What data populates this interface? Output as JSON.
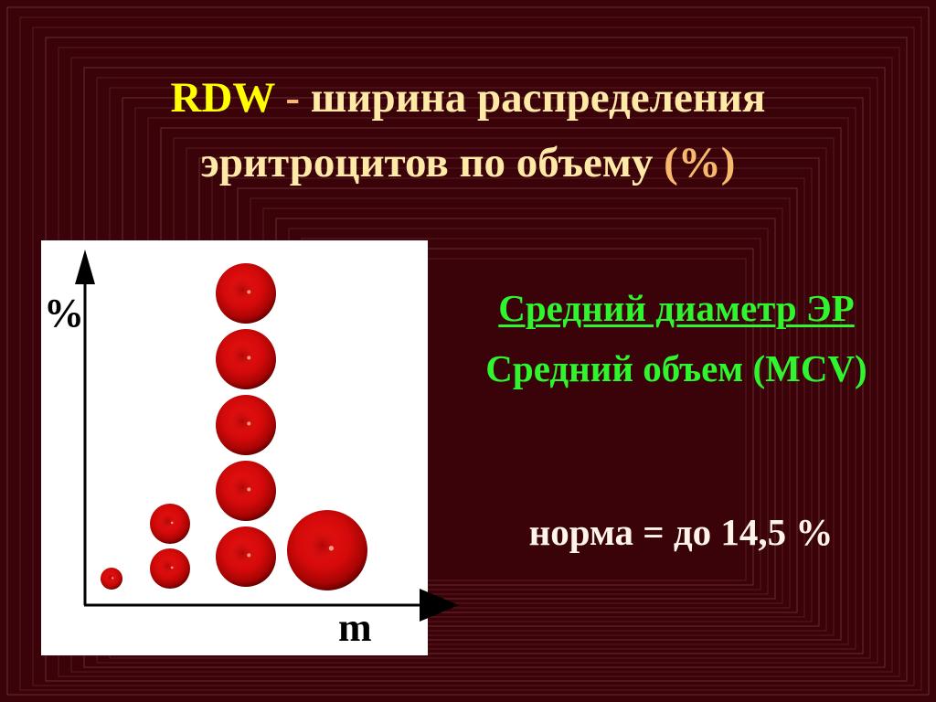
{
  "title": {
    "line1": {
      "abbr": "RDW",
      "dash": " - ",
      "rest": "ширина распределения"
    },
    "line2": {
      "text": "эритроцитов по объему ",
      "unit": "(%)"
    }
  },
  "diagram": {
    "y_axis_label": "%",
    "x_axis_label": "m",
    "columns": [
      {
        "size": "smallest",
        "count": 1
      },
      {
        "size": "small",
        "count": 2
      },
      {
        "size": "normal",
        "count": 5
      },
      {
        "size": "large",
        "count": 1
      }
    ],
    "cell_color": "#d40a0a"
  },
  "info": {
    "line1": "Средний диаметр ЭР",
    "line2": "Средний объем (MCV)",
    "norm": "норма = до 14,5 %"
  },
  "colors": {
    "background": "#3a0309",
    "title_accent": "#ffff00",
    "title_text": "#ffe9a6",
    "info_text": "#2ef52e"
  }
}
